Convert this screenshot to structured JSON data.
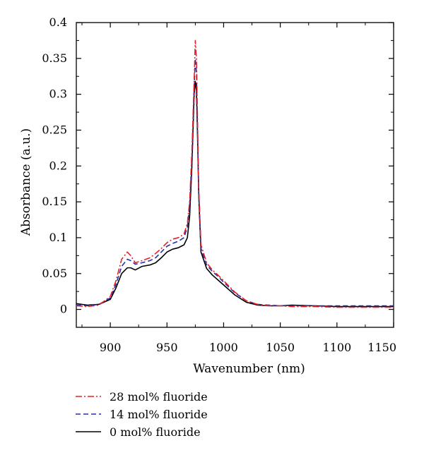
{
  "chart_data": {
    "type": "line",
    "title": "",
    "xlabel": "Wavenumber (nm)",
    "ylabel": "Absorbance (a.u.)",
    "xlim": [
      870,
      1150
    ],
    "ylim": [
      -0.025,
      0.4
    ],
    "x_ticks": [
      900,
      950,
      1000,
      1050,
      1100,
      1150
    ],
    "y_ticks": [
      0,
      0.05,
      0.1,
      0.15,
      0.2,
      0.25,
      0.3,
      0.35,
      0.4
    ],
    "x_tick_labels": [
      "900",
      "950",
      "1000",
      "1050",
      "1100",
      "1150"
    ],
    "y_tick_labels": [
      "0",
      "0.05",
      "0.1",
      "0.15",
      "0.2",
      "0.25",
      "0.3",
      "0.35",
      "0.4"
    ],
    "grid": false,
    "legend_position": "bottom-left, below the plot",
    "series": [
      {
        "name": "28 mol% fluoride",
        "color": "#e8202a",
        "style": "dash-dot",
        "x": [
          870,
          880,
          890,
          900,
          905,
          910,
          915,
          918,
          922,
          928,
          935,
          940,
          945,
          950,
          955,
          960,
          965,
          968,
          970,
          972,
          974,
          975,
          976,
          977,
          978,
          980,
          985,
          990,
          995,
          1000,
          1010,
          1020,
          1030,
          1040,
          1050,
          1060,
          1080,
          1100,
          1120,
          1140,
          1150
        ],
        "y": [
          0.005,
          0.004,
          0.006,
          0.018,
          0.04,
          0.07,
          0.08,
          0.075,
          0.065,
          0.068,
          0.072,
          0.078,
          0.085,
          0.093,
          0.098,
          0.1,
          0.105,
          0.12,
          0.15,
          0.22,
          0.32,
          0.375,
          0.35,
          0.26,
          0.17,
          0.09,
          0.065,
          0.055,
          0.048,
          0.04,
          0.024,
          0.012,
          0.007,
          0.005,
          0.005,
          0.004,
          0.004,
          0.003,
          0.003,
          0.003,
          0.003
        ]
      },
      {
        "name": "14 mol% fluoride",
        "color": "#2330a8",
        "style": "dashed",
        "x": [
          870,
          880,
          890,
          900,
          905,
          910,
          915,
          918,
          922,
          928,
          935,
          940,
          945,
          950,
          955,
          960,
          965,
          968,
          970,
          972,
          974,
          975,
          976,
          977,
          978,
          980,
          985,
          990,
          995,
          1000,
          1010,
          1020,
          1030,
          1040,
          1050,
          1060,
          1080,
          1100,
          1120,
          1140,
          1150
        ],
        "y": [
          0.006,
          0.005,
          0.007,
          0.016,
          0.035,
          0.06,
          0.07,
          0.068,
          0.063,
          0.065,
          0.068,
          0.072,
          0.08,
          0.088,
          0.092,
          0.095,
          0.1,
          0.115,
          0.145,
          0.21,
          0.31,
          0.35,
          0.33,
          0.25,
          0.165,
          0.085,
          0.062,
          0.053,
          0.046,
          0.038,
          0.023,
          0.012,
          0.007,
          0.006,
          0.005,
          0.005,
          0.005,
          0.005,
          0.005,
          0.005,
          0.005
        ]
      },
      {
        "name": "0 mol% fluoride",
        "color": "#000000",
        "style": "solid",
        "x": [
          870,
          880,
          890,
          900,
          905,
          910,
          915,
          918,
          922,
          928,
          935,
          940,
          945,
          950,
          955,
          960,
          965,
          968,
          970,
          972,
          974,
          975,
          976,
          977,
          978,
          980,
          985,
          990,
          995,
          1000,
          1010,
          1020,
          1030,
          1040,
          1050,
          1060,
          1080,
          1100,
          1120,
          1140,
          1150
        ],
        "y": [
          0.008,
          0.006,
          0.007,
          0.014,
          0.03,
          0.05,
          0.058,
          0.058,
          0.055,
          0.06,
          0.062,
          0.065,
          0.072,
          0.08,
          0.084,
          0.086,
          0.09,
          0.1,
          0.13,
          0.2,
          0.3,
          0.318,
          0.305,
          0.24,
          0.16,
          0.08,
          0.057,
          0.048,
          0.041,
          0.034,
          0.02,
          0.01,
          0.006,
          0.005,
          0.005,
          0.006,
          0.005,
          0.004,
          0.004,
          0.004,
          0.004
        ]
      }
    ]
  }
}
